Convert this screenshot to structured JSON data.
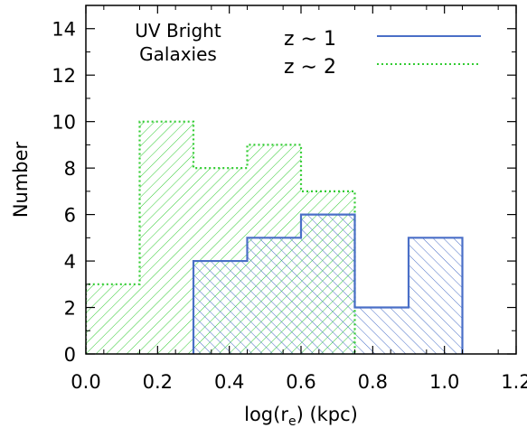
{
  "chart_data": {
    "type": "histogram",
    "annotation": [
      "UV Bright",
      "Galaxies"
    ],
    "ylabel": "Number",
    "xlabel_parts": {
      "prefix": "log(r",
      "subscript": "e",
      "suffix": ") (kpc)"
    },
    "xlim": [
      0.0,
      1.2
    ],
    "ylim": [
      0,
      15
    ],
    "x_ticks": [
      "0.0",
      "0.2",
      "0.4",
      "0.6",
      "0.8",
      "1.0",
      "1.2"
    ],
    "y_ticks": [
      "0",
      "2",
      "4",
      "6",
      "8",
      "10",
      "12",
      "14"
    ],
    "legend_position": "top-right",
    "series": [
      {
        "name": "z ∼ 2",
        "color": "#33cc33",
        "line_style": "dotted",
        "hatch": "diagonal",
        "bin_edges": [
          0.0,
          0.15,
          0.3,
          0.45,
          0.6,
          0.75
        ],
        "counts": [
          3,
          10,
          8,
          9,
          7
        ]
      },
      {
        "name": "z ∼ 1",
        "color": "#4a6fc7",
        "line_style": "solid",
        "hatch": "anti-diagonal",
        "bin_edges": [
          0.3,
          0.45,
          0.6,
          0.75,
          0.9,
          1.05
        ],
        "counts": [
          4,
          5,
          6,
          2,
          5
        ]
      }
    ]
  }
}
